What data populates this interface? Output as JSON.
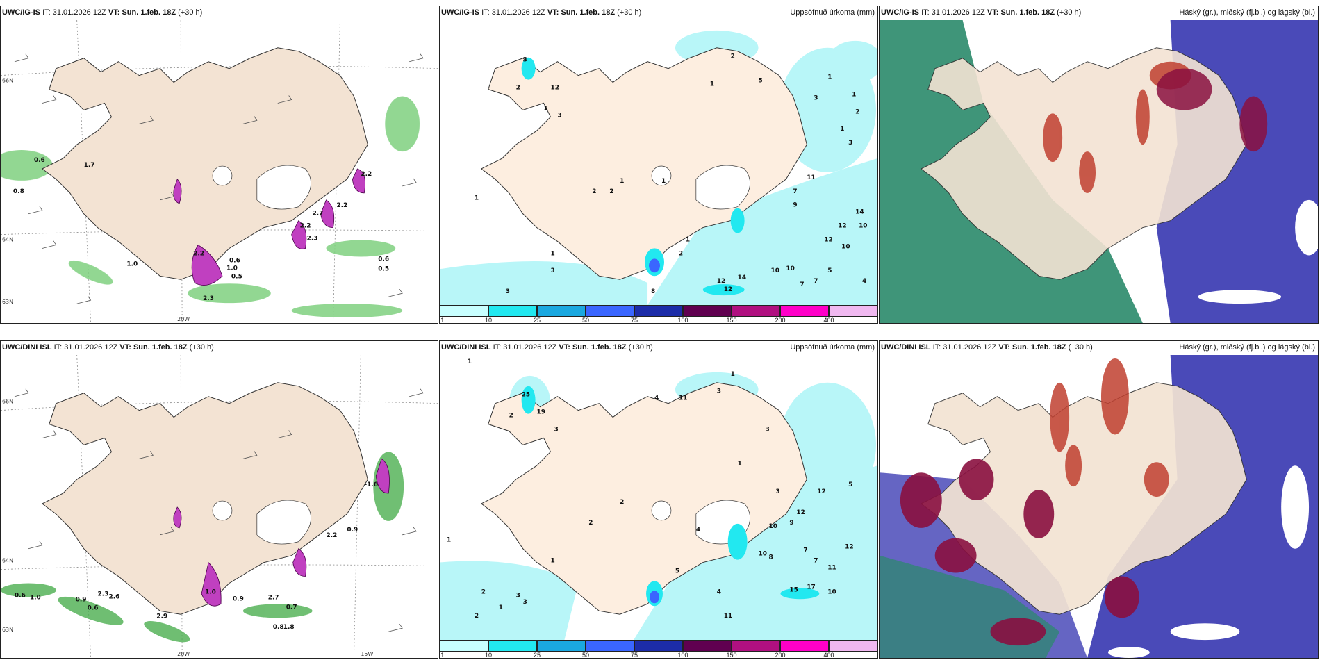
{
  "top_row": {
    "wind": {
      "model": "UWC/IG-IS",
      "it_label": "IT:",
      "it": "31.01.2026 12Z",
      "vt_label": "VT:",
      "vt": "Sun. 1.feb. 18Z",
      "lead": "(+30 h)",
      "lat_labels": [
        "66N",
        "64N",
        "63N"
      ],
      "lon_labels": [
        "20W"
      ],
      "values": [
        "0.6",
        "0.8",
        "1.0",
        "1.7",
        "2.2",
        "1.0",
        "0.6",
        "0.5",
        "2.3",
        "2.2",
        "2.2",
        "2.2",
        "2.7",
        "0.6",
        "0.5",
        "2.3"
      ]
    },
    "precip": {
      "model": "UWC/IG-IS",
      "it_label": "IT:",
      "it": "31.01.2026 12Z",
      "vt_label": "VT:",
      "vt": "Sun. 1.feb. 18Z",
      "lead": "(+30 h)",
      "title": "Uppsöfnuð úrkoma (mm)",
      "values": [
        "1",
        "2",
        "3",
        "2",
        "12",
        "1",
        "3",
        "1",
        "2",
        "1",
        "1",
        "3",
        "3",
        "2",
        "1",
        "1",
        "2",
        "5",
        "3",
        "3",
        "11",
        "7",
        "14",
        "12",
        "10",
        "12",
        "10",
        "8",
        "9",
        "14",
        "12",
        "12",
        "10",
        "10",
        "7",
        "7",
        "4",
        "5",
        "1",
        "2",
        "1",
        "1"
      ]
    },
    "cloud": {
      "model": "UWC/IG-IS",
      "it_label": "IT:",
      "it": "31.01.2026 12Z",
      "vt_label": "VT:",
      "vt": "Sun. 1.feb. 18Z",
      "lead": "(+30 h)",
      "title": "Háský (gr.), miðský (fj.bl.) og lágský (bl.)"
    }
  },
  "bottom_row": {
    "wind": {
      "model": "UWC/DINI ISL",
      "it_label": "IT:",
      "it": "31.01.2026 12Z",
      "vt_label": "VT:",
      "vt": "Sun. 1.feb. 18Z",
      "lead": "(+30 h)",
      "lat_labels": [
        "66N",
        "64N",
        "63N"
      ],
      "lon_labels": [
        "20W",
        "15W"
      ],
      "values": [
        "0.6",
        "1.0",
        "0.9",
        "0.6",
        "2.3",
        "2.6",
        "1.0",
        "0.9",
        "2.7",
        "0.7",
        "0.8",
        "1.8",
        "2.9",
        "-1.6",
        "0.9",
        "2.2"
      ]
    },
    "precip": {
      "model": "UWC/DINI ISL",
      "it_label": "IT:",
      "it": "31.01.2026 12Z",
      "vt_label": "VT:",
      "vt": "Sun. 1.feb. 18Z",
      "lead": "(+30 h)",
      "title": "Uppsöfnuð úrkoma (mm)",
      "values": [
        "1",
        "2",
        "25",
        "19",
        "3",
        "4",
        "11",
        "3",
        "1",
        "3",
        "1",
        "2",
        "2",
        "1",
        "3",
        "2",
        "1",
        "5",
        "4",
        "12",
        "11",
        "7",
        "17",
        "15",
        "10",
        "7",
        "12",
        "5",
        "10",
        "8",
        "3",
        "12",
        "9",
        "10",
        "11",
        "4",
        "2",
        "1",
        "3"
      ]
    },
    "cloud": {
      "model": "UWC/DINI ISL",
      "it_label": "IT:",
      "it": "31.01.2026 12Z",
      "vt_label": "VT:",
      "vt": "Sun. 1.feb. 18Z",
      "lead": "(+30 h)",
      "title": "Háský (gr.), miðský (fj.bl.) og lágský (bl.)"
    }
  },
  "colorbar": {
    "ticks": [
      "1",
      "10",
      "25",
      "50",
      "75",
      "100",
      "150",
      "200",
      "400"
    ],
    "colors": [
      "#c8ffff",
      "#22e8f0",
      "#1aa8e0",
      "#3a66ff",
      "#1c2ca8",
      "#600050",
      "#b01080",
      "#ff00c8",
      "#f0b8f0"
    ]
  },
  "colors": {
    "land": "#f3e3d3",
    "land_precip": "#fdeee0",
    "sea": "#ffffff",
    "green": "#4caf50",
    "purple": "#c040c0",
    "cloud_high": "#c04030",
    "cloud_mid": "#8a1040",
    "cloud_low": "#4a4ab8",
    "cloud_low2": "#2a8a6a"
  }
}
